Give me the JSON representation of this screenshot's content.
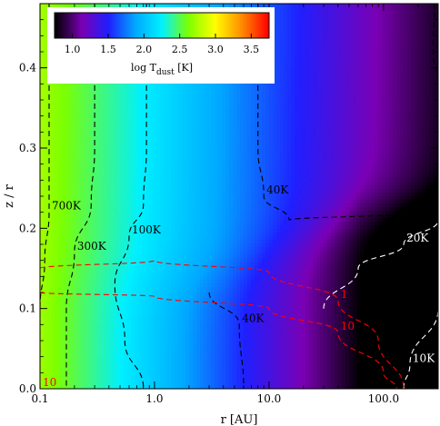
{
  "chart_data": {
    "type": "heatmap",
    "title": "",
    "xlabel": "r [AU]",
    "ylabel": "z / r",
    "x_scale": "log",
    "xlim": [
      0.1,
      300
    ],
    "ylim": [
      0.0,
      0.48
    ],
    "x_ticks": [
      "0.1",
      "1.0",
      "10.0",
      "100.0"
    ],
    "y_ticks": [
      "0.0",
      "0.1",
      "0.2",
      "0.3",
      "0.4"
    ],
    "colorbar": {
      "label": "log T_dust [K]",
      "label_main": "log T",
      "label_sub": "dust",
      "label_unit": " [K]",
      "range": [
        0.75,
        3.75
      ],
      "ticks": [
        "1.0",
        "1.5",
        "2.0",
        "2.5",
        "3.0",
        "3.5"
      ],
      "placement": "top-left",
      "colormap": [
        "#000000",
        "#7a00b4",
        "#1f1fff",
        "#00a8ff",
        "#00f0ff",
        "#7cff00",
        "#ffff00",
        "#ff8c00",
        "#ff0000"
      ]
    },
    "temperature_contours": [
      {
        "label": "700K",
        "color": "#000000",
        "style": "dashed",
        "points": [
          [
            0.12,
            0.48
          ],
          [
            0.12,
            0.3
          ],
          [
            0.12,
            0.22
          ],
          [
            0.11,
            0.16
          ],
          [
            0.1,
            0.1
          ]
        ]
      },
      {
        "label": "300K",
        "color": "#000000",
        "style": "dashed",
        "points": [
          [
            0.3,
            0.48
          ],
          [
            0.3,
            0.3
          ],
          [
            0.28,
            0.23
          ],
          [
            0.2,
            0.17
          ],
          [
            0.17,
            0.1
          ],
          [
            0.17,
            0.0
          ]
        ]
      },
      {
        "label": "100K",
        "color": "#000000",
        "style": "dashed",
        "points": [
          [
            0.85,
            0.48
          ],
          [
            0.85,
            0.3
          ],
          [
            0.8,
            0.23
          ],
          [
            0.6,
            0.19
          ],
          [
            0.45,
            0.13
          ],
          [
            0.55,
            0.06
          ],
          [
            0.8,
            0.0
          ]
        ]
      },
      {
        "label": "40K",
        "color": "#000000",
        "style": "dashed",
        "points": [
          [
            8.0,
            0.48
          ],
          [
            8.0,
            0.3
          ],
          [
            9.0,
            0.24
          ],
          [
            15.0,
            0.21
          ],
          [
            300,
            0.22
          ]
        ]
      },
      {
        "label": "40K",
        "color": "#000000",
        "style": "dashed",
        "points": [
          [
            3.0,
            0.12
          ],
          [
            5.5,
            0.08
          ],
          [
            6.0,
            0.0
          ]
        ]
      },
      {
        "label": "40K",
        "color": "#000000",
        "style": "dashed",
        "points": [
          [
            280,
            0.48
          ],
          [
            270,
            0.42
          ],
          [
            300,
            0.38
          ]
        ]
      },
      {
        "label": "20K",
        "color": "#ffffff",
        "style": "dashed",
        "points": [
          [
            30,
            0.1
          ],
          [
            60,
            0.15
          ],
          [
            150,
            0.18
          ],
          [
            300,
            0.21
          ]
        ]
      },
      {
        "label": "10K",
        "color": "#ffffff",
        "style": "dashed",
        "points": [
          [
            150,
            0.0
          ],
          [
            170,
            0.03
          ],
          [
            300,
            0.1
          ]
        ]
      }
    ],
    "density_contours": [
      {
        "label": "10",
        "color": "#ff0000",
        "style": "dashed",
        "points": [
          [
            0.1,
            0.12
          ],
          [
            1.0,
            0.115
          ],
          [
            10.0,
            0.1
          ],
          [
            40.0,
            0.07
          ],
          [
            100,
            0.02
          ],
          [
            130,
            0.0
          ]
        ]
      },
      {
        "label": "1",
        "color": "#ff0000",
        "style": "dashed",
        "points": [
          [
            0.1,
            0.15
          ],
          [
            1.0,
            0.16
          ],
          [
            10.0,
            0.145
          ],
          [
            40.0,
            0.11
          ],
          [
            90.0,
            0.06
          ],
          [
            150,
            0.0
          ]
        ]
      },
      {
        "label": "10",
        "color": "#ff0000",
        "style": "dashed",
        "points": [
          [
            0.1,
            0.12
          ],
          [
            0.1,
            0.0
          ]
        ]
      }
    ]
  }
}
